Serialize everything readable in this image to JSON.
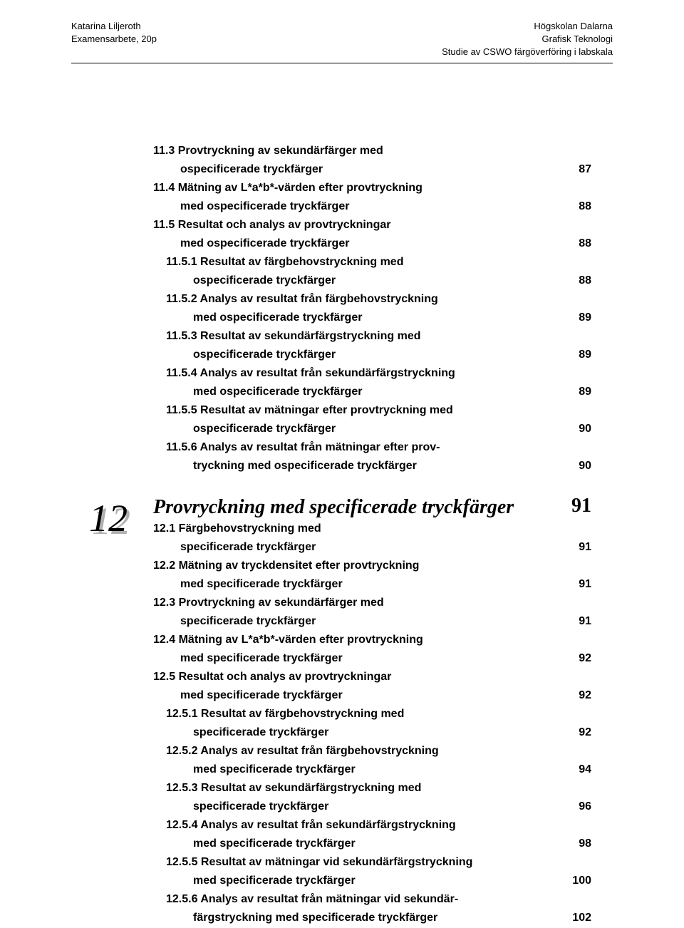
{
  "header": {
    "left_line1": "Katarina Liljeroth",
    "left_line2": "Examensarbete, 20p",
    "right_line1": "Högskolan Dalarna",
    "right_line2": "Grafisk Teknologi",
    "right_line3": "Studie av CSWO färgöverföring i labskala"
  },
  "chapter_marker": "12",
  "section_title": "Provryckning med specificerade tryckfärger",
  "section_title_page": "91",
  "toc1": [
    {
      "text": "11.3 Provtryckning av sekundärfärger med",
      "cont": "ospecificerade tryckfärger",
      "page": "87",
      "bold": true,
      "sub": false
    },
    {
      "text": "11.4 Mätning av L*a*b*-värden efter provtryckning",
      "cont": "med ospecificerade tryckfärger",
      "page": "88",
      "bold": true,
      "sub": false
    },
    {
      "text": "11.5 Resultat och analys av provtryckningar",
      "cont": "med ospecificerade tryckfärger",
      "page": "88",
      "bold": true,
      "sub": false
    },
    {
      "text": "11.5.1 Resultat av färgbehovstryckning med",
      "cont": "ospecificerade tryckfärger",
      "page": "88",
      "bold": true,
      "sub": true
    },
    {
      "text": "11.5.2 Analys av resultat från färgbehovstryckning",
      "cont": "med ospecificerade tryckfärger",
      "page": "89",
      "bold": true,
      "sub": true
    },
    {
      "text": "11.5.3 Resultat av sekundärfärgstryckning med",
      "cont": "ospecificerade tryckfärger",
      "page": "89",
      "bold": true,
      "sub": true
    },
    {
      "text": "11.5.4 Analys av resultat från sekundärfärgstryckning",
      "cont": "med ospecificerade tryckfärger",
      "page": "89",
      "bold": true,
      "sub": true
    },
    {
      "text": "11.5.5 Resultat av mätningar efter provtryckning med",
      "cont": "ospecificerade tryckfärger",
      "page": "90",
      "bold": true,
      "sub": true
    },
    {
      "text": "11.5.6 Analys av resultat från mätningar efter prov-",
      "cont": "tryckning med ospecificerade tryckfärger",
      "page": "90",
      "bold": true,
      "sub": true
    }
  ],
  "toc2": [
    {
      "text": "12.1 Färgbehovstryckning med",
      "cont": "specificerade tryckfärger",
      "page": "91",
      "bold": true,
      "sub": false
    },
    {
      "text": "12.2 Mätning av tryckdensitet efter provtryckning",
      "cont": "med specificerade tryckfärger",
      "page": "91",
      "bold": true,
      "sub": false
    },
    {
      "text": "12.3 Provtryckning av sekundärfärger med",
      "cont": "specificerade tryckfärger",
      "page": "91",
      "bold": true,
      "sub": false
    },
    {
      "text": "12.4 Mätning av L*a*b*-värden efter provtryckning",
      "cont": "med specificerade tryckfärger",
      "page": "92",
      "bold": true,
      "sub": false
    },
    {
      "text": "12.5 Resultat och analys av provtryckningar",
      "cont": "med specificerade tryckfärger",
      "page": "92",
      "bold": true,
      "sub": false
    },
    {
      "text": "12.5.1 Resultat av färgbehovstryckning med",
      "cont": "specificerade tryckfärger",
      "page": "92",
      "bold": true,
      "sub": true
    },
    {
      "text": "12.5.2 Analys av resultat från färgbehovstryckning",
      "cont": "med specificerade tryckfärger",
      "page": "94",
      "bold": true,
      "sub": true
    },
    {
      "text": "12.5.3 Resultat av sekundärfärgstryckning med",
      "cont": "specificerade tryckfärger",
      "page": "96",
      "bold": true,
      "sub": true
    },
    {
      "text": "12.5.4 Analys av resultat från sekundärfärgstryckning",
      "cont": "med specificerade tryckfärger",
      "page": "98",
      "bold": true,
      "sub": true
    },
    {
      "text": "12.5.5 Resultat av mätningar vid sekundärfärgstryckning",
      "cont": "med specificerade tryckfärger",
      "page": "100",
      "bold": true,
      "sub": true
    },
    {
      "text": "12.5.6 Analys av resultat från mätningar vid sekundär-",
      "cont": "färgstryckning med specificerade tryckfärger",
      "page": "102",
      "bold": true,
      "sub": true
    }
  ]
}
